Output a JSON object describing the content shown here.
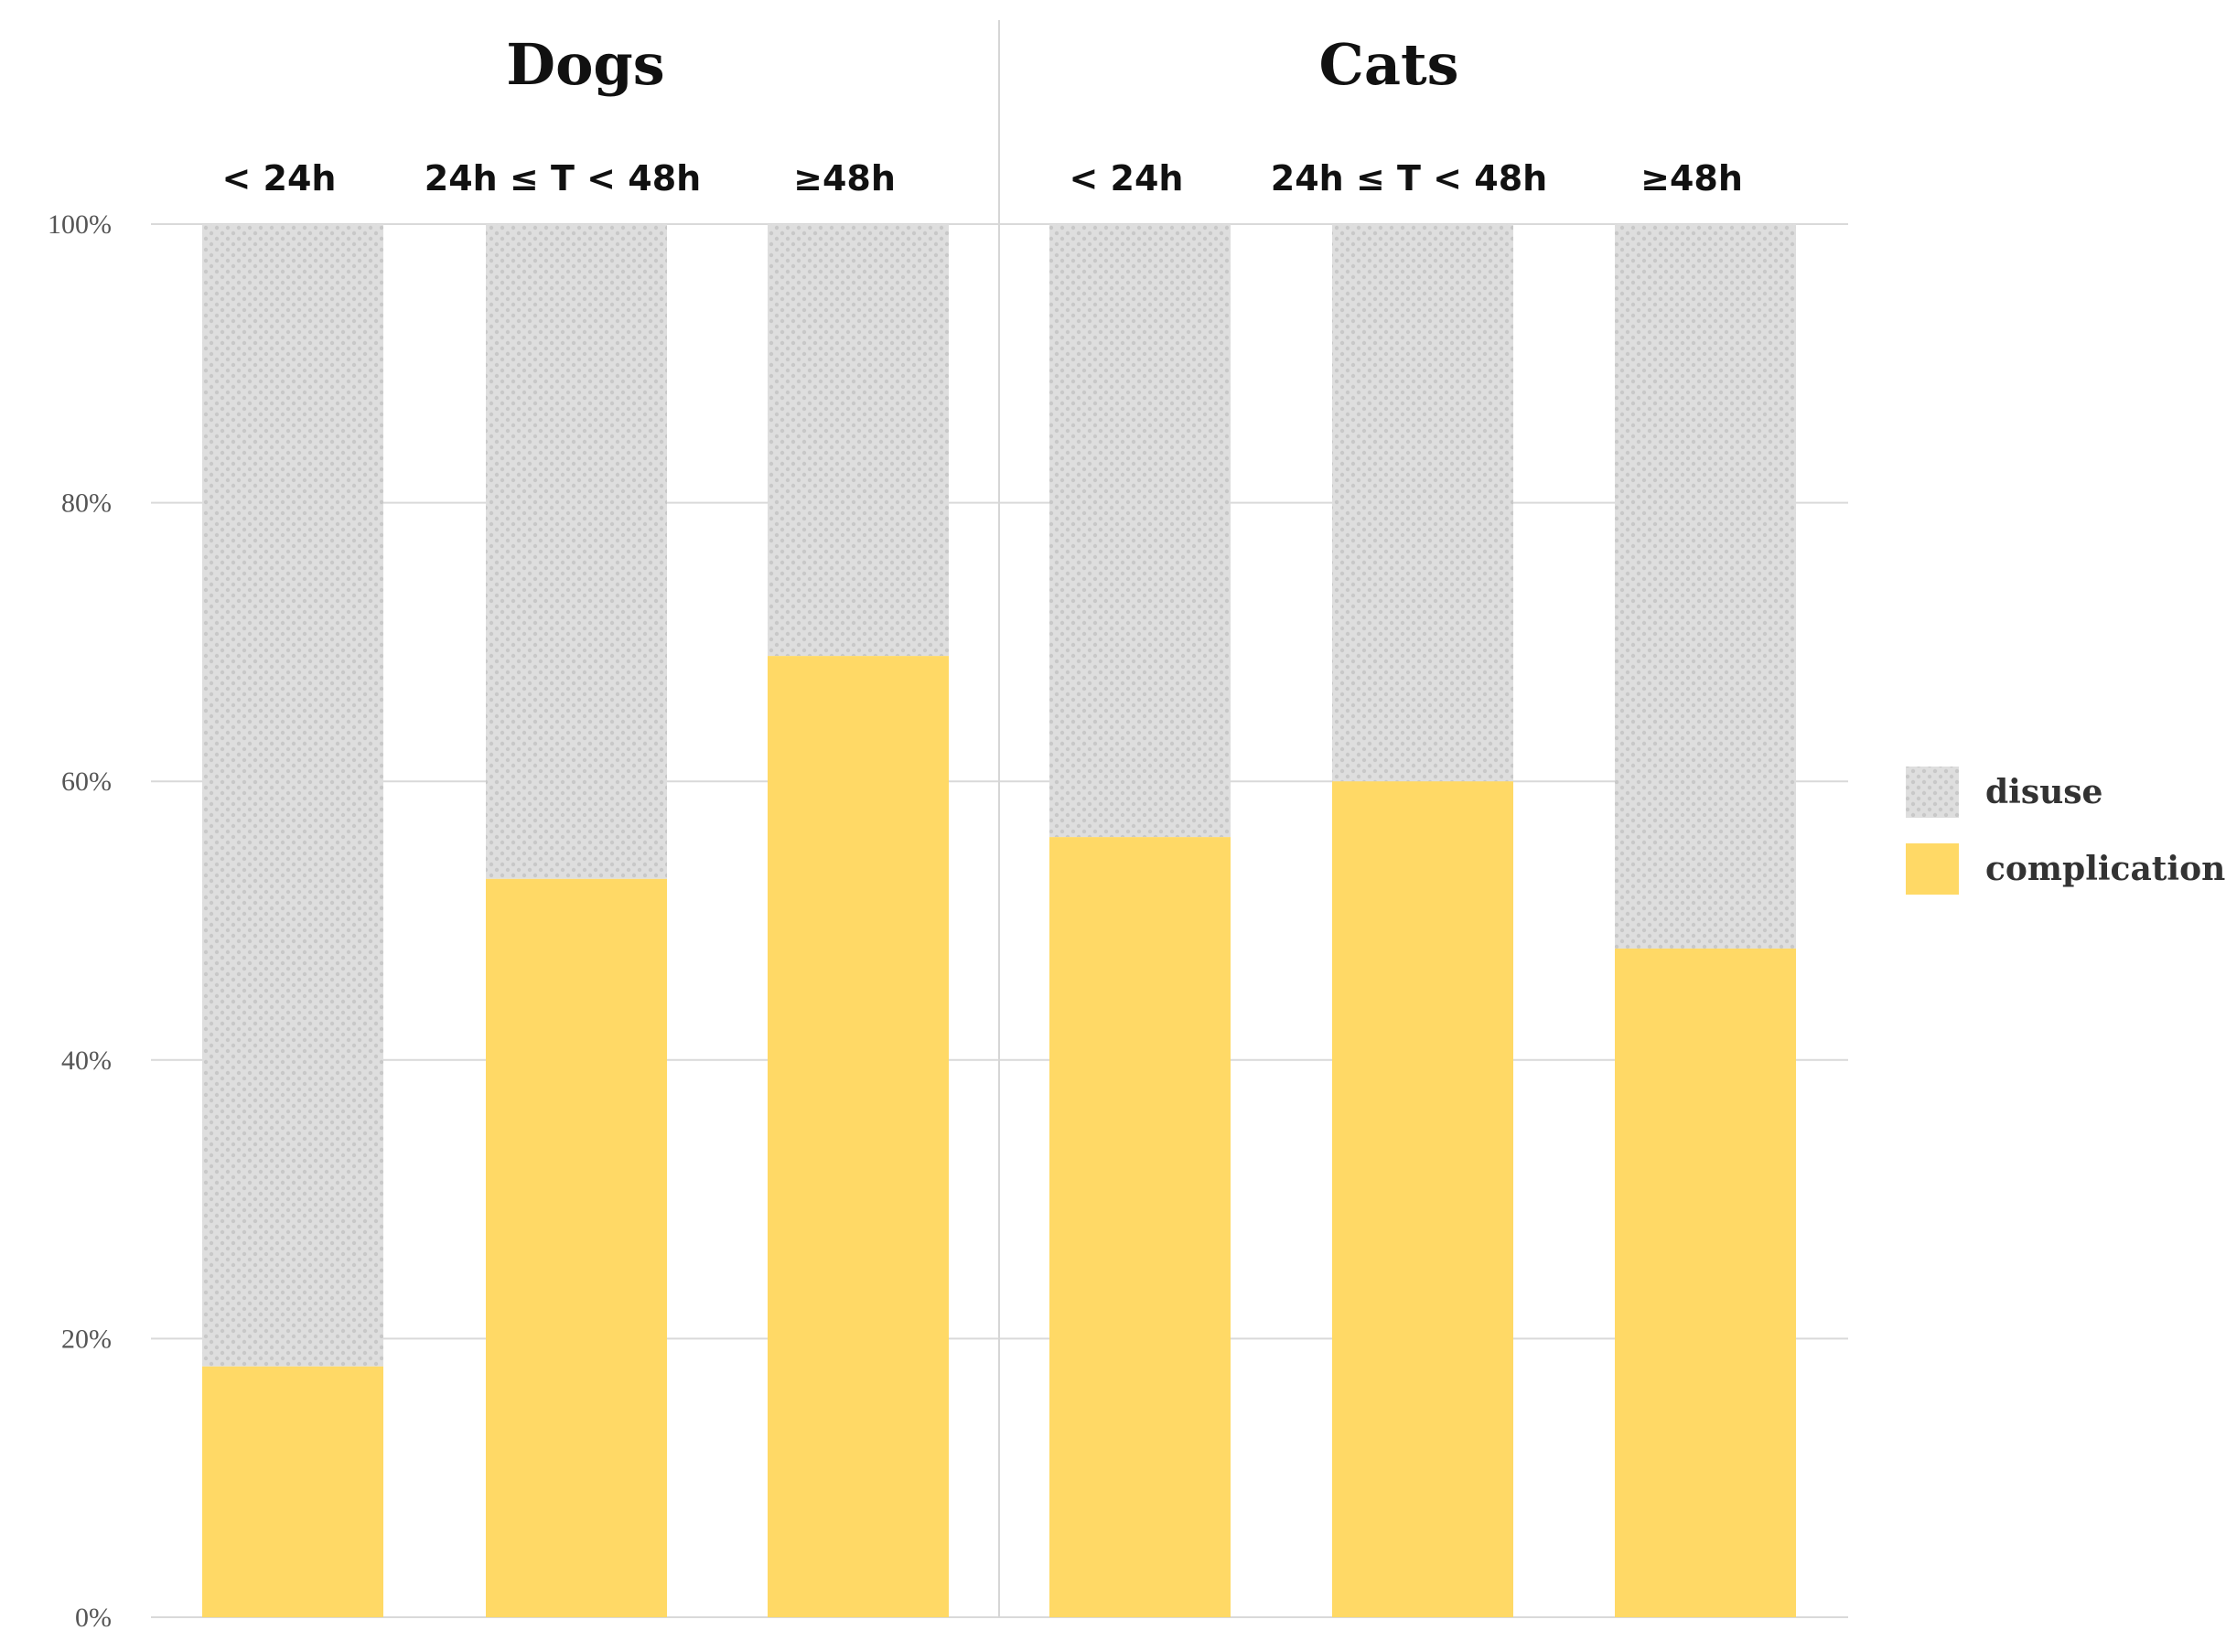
{
  "chart_data": {
    "type": "bar",
    "stacked": true,
    "normalized": true,
    "groups": [
      {
        "title": "Dogs",
        "categories": [
          "< 24h",
          "24h ≤ T < 48h",
          "≥48h"
        ]
      },
      {
        "title": "Cats",
        "categories": [
          "< 24h",
          "24h ≤ T < 48h",
          "≥48h"
        ]
      }
    ],
    "categories": [
      "< 24h",
      "24h ≤ T < 48h",
      "≥48h",
      "< 24h",
      "24h ≤ T < 48h",
      "≥48h"
    ],
    "series": [
      {
        "name": "complications",
        "color": "#FFD966",
        "values": [
          18,
          53,
          69,
          56,
          60,
          48
        ]
      },
      {
        "name": "disuse",
        "color": "#DDDDDD",
        "values": [
          82,
          47,
          31,
          44,
          40,
          52
        ]
      }
    ],
    "legend": {
      "placement": "right",
      "entries": [
        "disuse",
        "complications"
      ]
    },
    "ylim": [
      0,
      100
    ],
    "yticks": [
      0,
      20,
      40,
      60,
      80,
      100
    ],
    "ytick_labels": [
      "0%",
      "20%",
      "40%",
      "60%",
      "80%",
      "100%"
    ],
    "grid": true,
    "xlabel": "",
    "ylabel": ""
  }
}
